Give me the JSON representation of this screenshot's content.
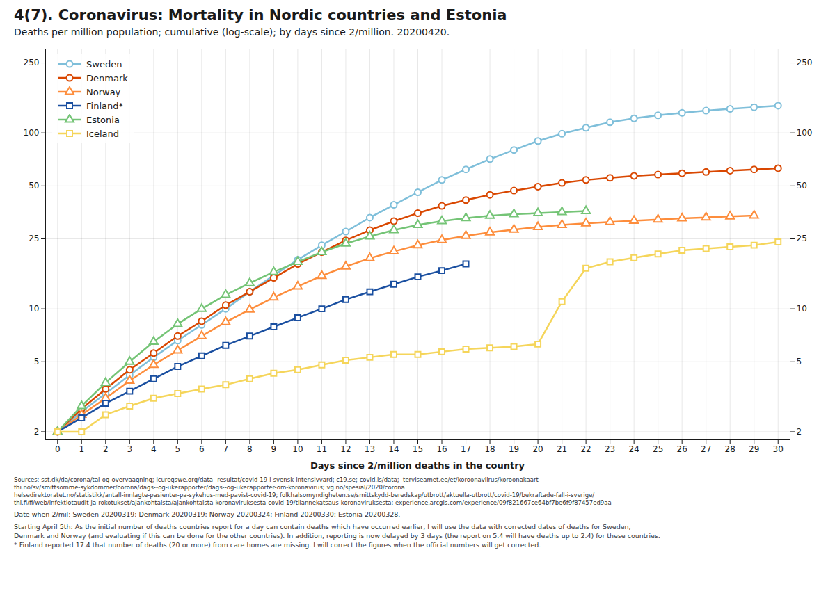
{
  "chart_data": {
    "type": "line",
    "title": "4(7). Coronavirus: Mortality in Nordic countries and Estonia",
    "subtitle": "Deaths per million population; cumulative (log-scale); by days since 2/million. 20200420.",
    "xlabel": "Days since 2/million deaths in the country",
    "annotations": [
      "Sources: sst.dk/da/corona/tal-og-overvaagning; icuregswe.org/data--resultat/covid-19-i-svensk-intensivvard; c19.se; covid.is/data;  terviseamet.ee/et/koroonaviirus/koroonakaart\nfhi.no/sv/smittsomme-sykdommer/corona/dags--og-ukerapporter/dags--og-ukerapporter-om-koronavirus; vg.no/spesial/2020/corona\nhelsedirektoratet.no/statistikk/antall-innlagte-pasienter-pa-sykehus-med-pavist-covid-19; folkhalsomyndigheten.se/smittskydd-beredskap/utbrott/aktuella-utbrott/covid-19/bekraftade-fall-i-sverige/\nthl.fi/fi/web/infektiotaudit-ja-rokotukset/ajankohtaista/ajankohtaista-koronaviruksesta-covid-19/tilannekatsaus-koronaviruksesta; experience.arcgis.com/experience/09f821667ce64bf7be6f9f87457ed9aa",
      "Date when 2/mil: Sweden 20200319; Denmark 20200319; Norway 20200324; Finland 20200330; Estonia 20200328.",
      "Starting April 5th: As the initial number of deaths countries report for a day can contain deaths which have occurred earlier, I will use the data with corrected dates of deaths for Sweden,\nDenmark and Norway (and evaluating if this can be done for the other countries). In addition, reporting is now delayed by 3 days (the report on 5.4 will have deaths up to 2.4) for these countries.\n* Finland reported 17.4 that number of deaths (20 or more) from care homes are missing. I will correct the figures when the official numbers will get corrected."
    ],
    "x": [
      0,
      1,
      2,
      3,
      4,
      5,
      6,
      7,
      8,
      9,
      10,
      11,
      12,
      13,
      14,
      15,
      16,
      17,
      18,
      19,
      20,
      21,
      22,
      23,
      24,
      25,
      26,
      27,
      28,
      29,
      30
    ],
    "series": [
      {
        "name": "Sweden",
        "color": "#7fbfda",
        "marker": "circle",
        "values": [
          2.0,
          2.6,
          3.3,
          4.2,
          5.3,
          6.6,
          8.1,
          10.0,
          12.5,
          15.5,
          19.0,
          23.0,
          27.5,
          33.0,
          39.0,
          46.0,
          54.0,
          62.0,
          71.0,
          80.0,
          90.0,
          99.0,
          107.0,
          115.0,
          121.0,
          126.0,
          130.0,
          134.0,
          137.0,
          140.0,
          143.0
        ]
      },
      {
        "name": "Denmark",
        "color": "#d94701",
        "marker": "circle",
        "values": [
          2.0,
          2.7,
          3.5,
          4.5,
          5.6,
          7.0,
          8.5,
          10.5,
          12.5,
          15.0,
          18.0,
          21.0,
          24.5,
          28.0,
          31.5,
          35.0,
          38.5,
          41.5,
          44.5,
          47.0,
          49.5,
          52.0,
          54.0,
          55.5,
          57.0,
          58.0,
          59.0,
          60.0,
          61.0,
          62.0,
          63.0
        ]
      },
      {
        "name": "Norway",
        "color": "#fd8d3c",
        "marker": "triangle",
        "values": [
          2.0,
          2.5,
          3.1,
          3.9,
          4.8,
          5.8,
          7.0,
          8.4,
          9.9,
          11.6,
          13.4,
          15.4,
          17.4,
          19.4,
          21.2,
          23.0,
          24.6,
          26.0,
          27.2,
          28.2,
          29.2,
          30.0,
          30.6,
          31.2,
          31.7,
          32.2,
          32.7,
          33.1,
          33.5,
          33.9,
          null
        ]
      },
      {
        "name": "Finland*",
        "color": "#1a4fa0",
        "marker": "square",
        "values": [
          2.0,
          2.4,
          2.9,
          3.4,
          4.0,
          4.7,
          5.4,
          6.2,
          7.0,
          7.9,
          8.9,
          10.0,
          11.3,
          12.5,
          13.8,
          15.2,
          16.5,
          18.0,
          null,
          null,
          null,
          null,
          null,
          null,
          null,
          null,
          null,
          null,
          null,
          null,
          null
        ]
      },
      {
        "name": "Estonia",
        "color": "#74c476",
        "marker": "triangle",
        "values": [
          2.0,
          2.8,
          3.8,
          5.0,
          6.5,
          8.2,
          10.0,
          12.0,
          14.0,
          16.2,
          18.5,
          21.0,
          23.5,
          25.8,
          28.0,
          30.0,
          31.5,
          32.8,
          33.8,
          34.5,
          35.0,
          35.5,
          36.0,
          null,
          null,
          null,
          null,
          null,
          null,
          null,
          null
        ]
      },
      {
        "name": "Iceland",
        "color": "#f5d55a",
        "marker": "square",
        "values": [
          2.0,
          2.0,
          2.5,
          2.8,
          3.1,
          3.3,
          3.5,
          3.7,
          4.0,
          4.3,
          4.5,
          4.8,
          5.1,
          5.3,
          5.5,
          5.5,
          5.7,
          5.9,
          6.0,
          6.1,
          6.3,
          11.0,
          17.0,
          18.5,
          19.5,
          20.5,
          21.5,
          22.0,
          22.5,
          23.0,
          24.0
        ]
      }
    ],
    "xlim": [
      -0.5,
      30.5
    ],
    "xticks": [
      0,
      1,
      2,
      3,
      4,
      5,
      6,
      7,
      8,
      9,
      10,
      11,
      12,
      13,
      14,
      15,
      16,
      17,
      18,
      19,
      20,
      21,
      22,
      23,
      24,
      25,
      26,
      27,
      28,
      29,
      30
    ],
    "ylim": [
      1.8,
      300
    ],
    "yticks": [
      2,
      5,
      10,
      25,
      50,
      100,
      250
    ],
    "log": "y",
    "grid": true,
    "legend": "upper left"
  }
}
